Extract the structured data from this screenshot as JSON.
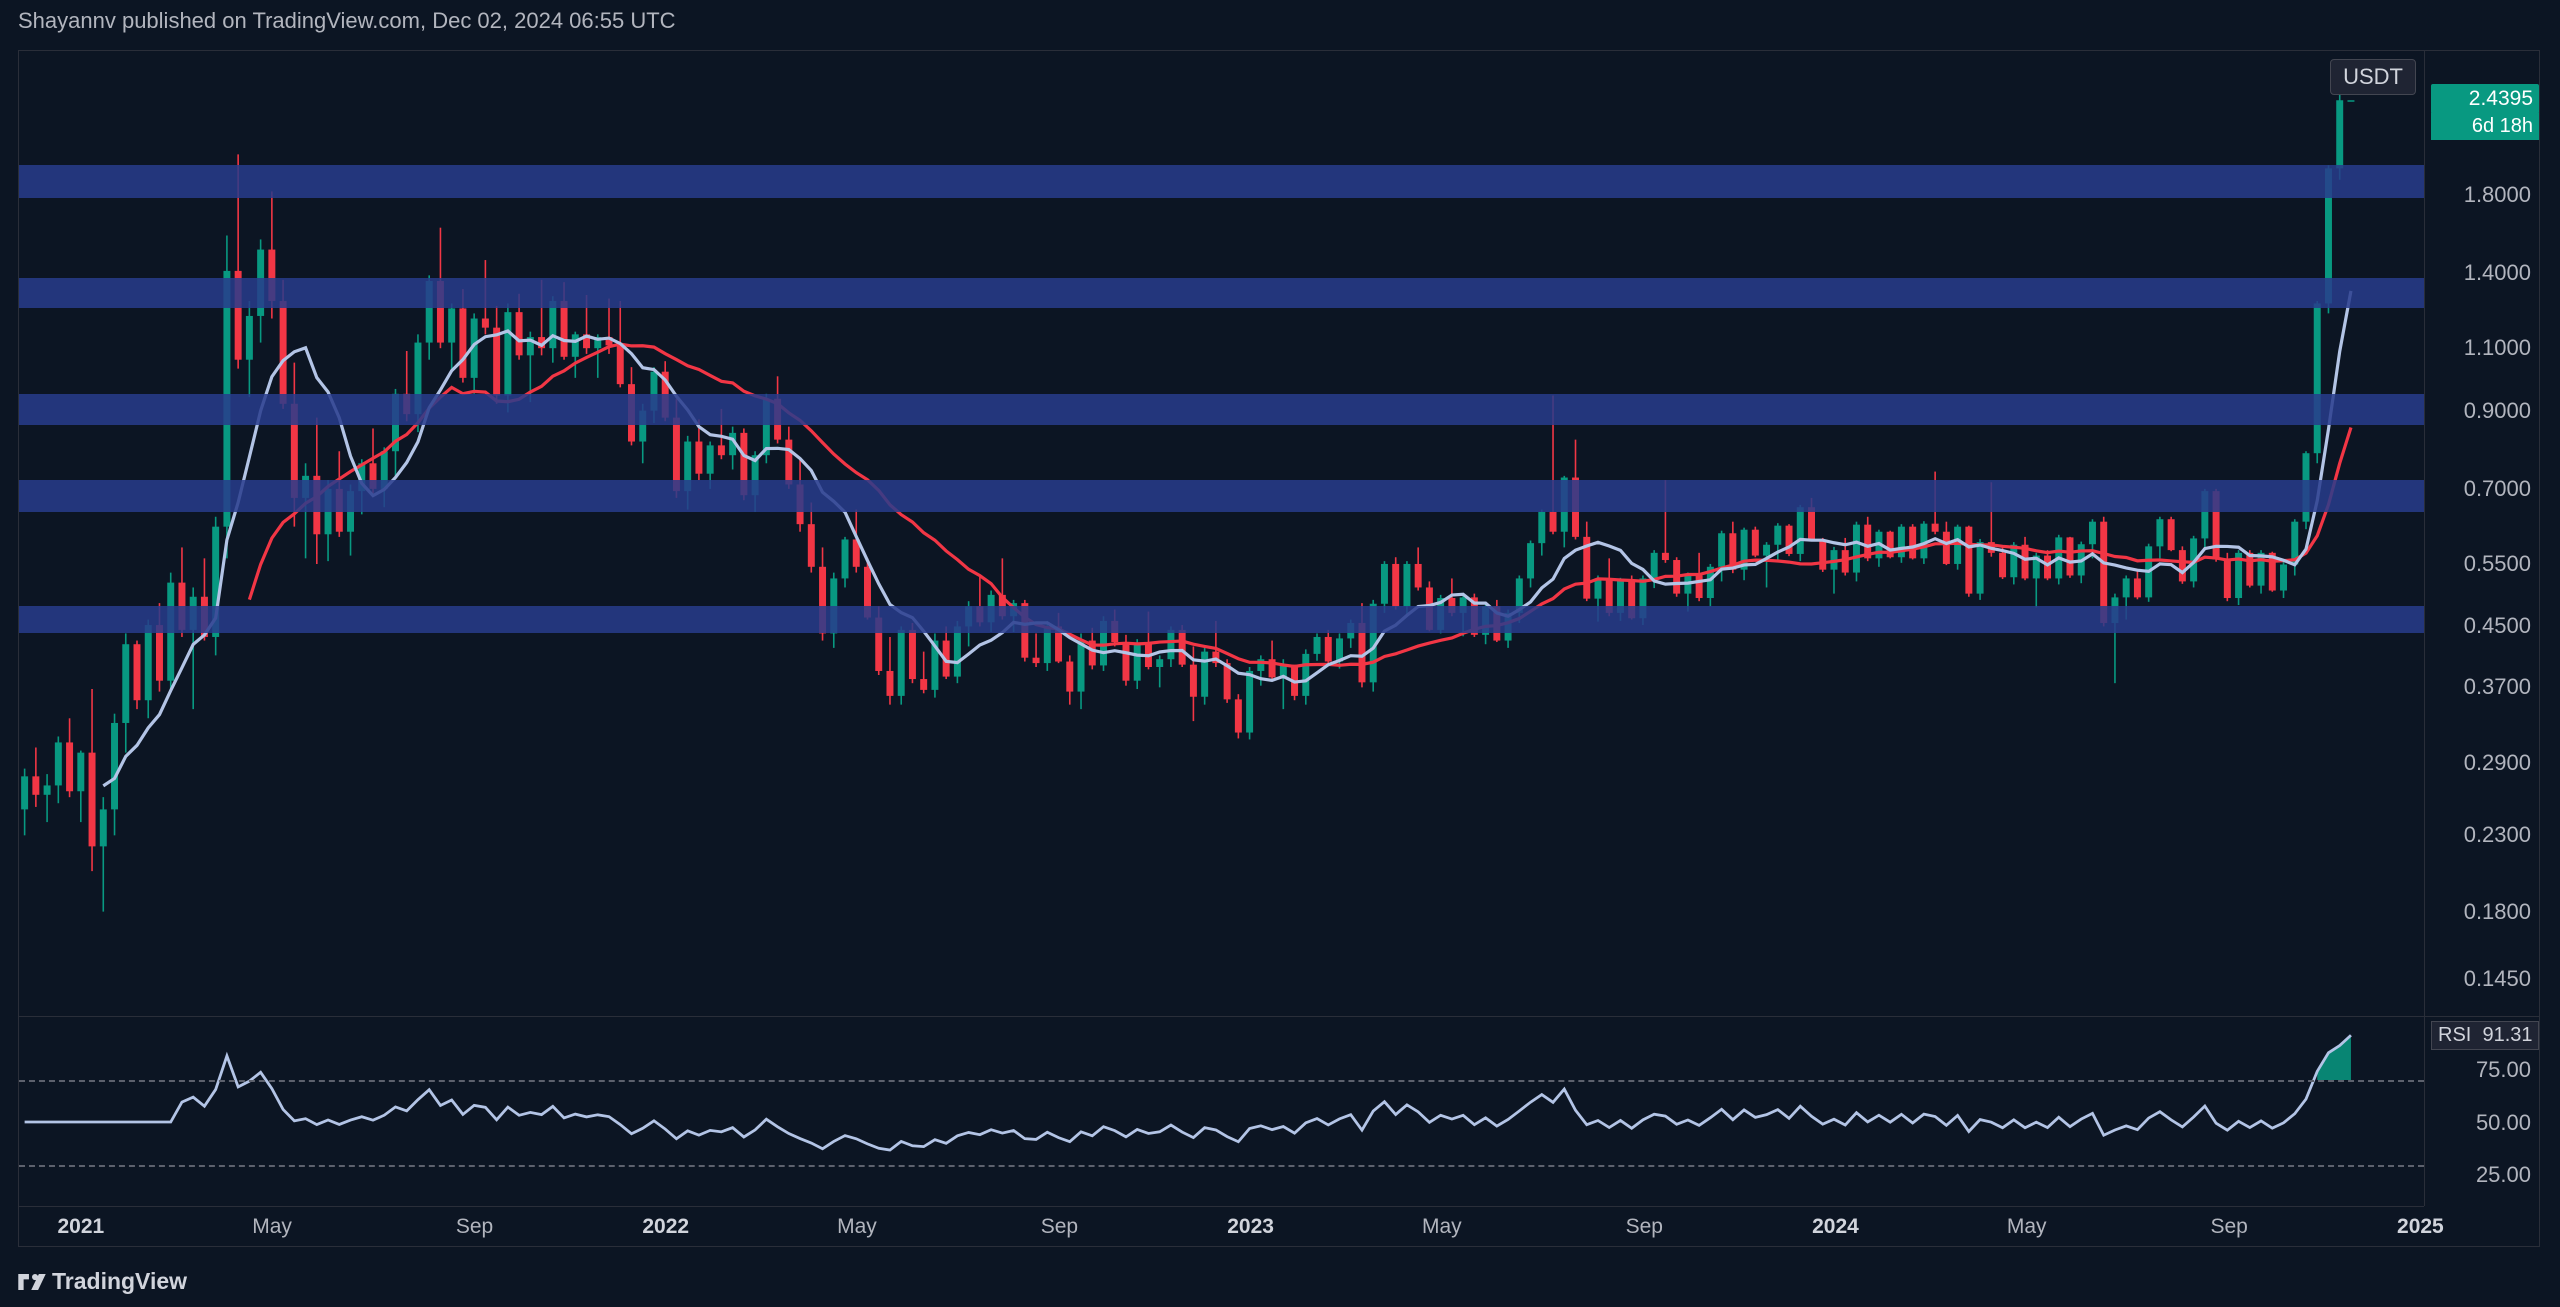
{
  "header": {
    "text": "Shayannv published on TradingView.com, Dec 02, 2024 06:55 UTC"
  },
  "footer": {
    "brand": "TradingView"
  },
  "quote_currency": "USDT",
  "current_price_label": "2.4395",
  "countdown_label": "6d 18h",
  "rsi_label": "RSI",
  "rsi_value_label": "91.31",
  "colors": {
    "background": "#0c1523",
    "grid": "#2a2e39",
    "text": "#b2b5be",
    "bull": "#089981",
    "bear": "#f23645",
    "ma_fast": "#b3c4e6",
    "ma_slow": "#f23645",
    "zone": "rgba(40,60,140,0.85)",
    "rsi_line": "#b3c4e6"
  },
  "price_chart": {
    "type": "candlestick-log",
    "y_ticks": [
      {
        "v": 0.145,
        "label": "0.1450"
      },
      {
        "v": 0.18,
        "label": "0.1800"
      },
      {
        "v": 0.23,
        "label": "0.2300"
      },
      {
        "v": 0.29,
        "label": "0.2900"
      },
      {
        "v": 0.37,
        "label": "0.3700"
      },
      {
        "v": 0.45,
        "label": "0.4500"
      },
      {
        "v": 0.55,
        "label": "0.5500"
      },
      {
        "v": 0.7,
        "label": "0.7000"
      },
      {
        "v": 0.9,
        "label": "0.9000"
      },
      {
        "v": 1.1,
        "label": "1.1000"
      },
      {
        "v": 1.4,
        "label": "1.4000"
      },
      {
        "v": 1.8,
        "label": "1.8000"
      }
    ],
    "y_min_log": -2.05,
    "y_max_log": 1.05,
    "zones": [
      {
        "lo": 0.44,
        "hi": 0.48
      },
      {
        "lo": 0.65,
        "hi": 0.72
      },
      {
        "lo": 0.86,
        "hi": 0.95
      },
      {
        "lo": 1.25,
        "hi": 1.38
      },
      {
        "lo": 1.78,
        "hi": 1.98
      }
    ],
    "x_labels": [
      {
        "i": 5,
        "label": "2021",
        "bold": true
      },
      {
        "i": 22,
        "label": "May"
      },
      {
        "i": 40,
        "label": "Sep"
      },
      {
        "i": 57,
        "label": "2022",
        "bold": true
      },
      {
        "i": 74,
        "label": "May"
      },
      {
        "i": 92,
        "label": "Sep"
      },
      {
        "i": 109,
        "label": "2023",
        "bold": true
      },
      {
        "i": 126,
        "label": "May"
      },
      {
        "i": 144,
        "label": "Sep"
      },
      {
        "i": 161,
        "label": "2024",
        "bold": true
      },
      {
        "i": 178,
        "label": "May"
      },
      {
        "i": 196,
        "label": "Sep"
      },
      {
        "i": 213,
        "label": "2025",
        "bold": true
      }
    ],
    "n_bars": 214,
    "candles": [
      [
        0.25,
        0.285,
        0.23,
        0.278
      ],
      [
        0.278,
        0.305,
        0.252,
        0.262
      ],
      [
        0.262,
        0.28,
        0.24,
        0.27
      ],
      [
        0.27,
        0.316,
        0.255,
        0.31
      ],
      [
        0.31,
        0.335,
        0.26,
        0.265
      ],
      [
        0.265,
        0.302,
        0.24,
        0.3
      ],
      [
        0.3,
        0.368,
        0.205,
        0.222
      ],
      [
        0.222,
        0.26,
        0.18,
        0.25
      ],
      [
        0.25,
        0.34,
        0.23,
        0.33
      ],
      [
        0.33,
        0.44,
        0.3,
        0.425
      ],
      [
        0.425,
        0.43,
        0.345,
        0.355
      ],
      [
        0.355,
        0.46,
        0.335,
        0.452
      ],
      [
        0.452,
        0.485,
        0.365,
        0.378
      ],
      [
        0.378,
        0.535,
        0.365,
        0.518
      ],
      [
        0.518,
        0.58,
        0.435,
        0.445
      ],
      [
        0.445,
        0.51,
        0.345,
        0.495
      ],
      [
        0.495,
        0.56,
        0.43,
        0.435
      ],
      [
        0.435,
        0.64,
        0.41,
        0.62
      ],
      [
        0.62,
        1.58,
        0.56,
        1.41
      ],
      [
        1.41,
        2.05,
        1.03,
        1.06
      ],
      [
        1.06,
        1.28,
        0.94,
        1.22
      ],
      [
        1.22,
        1.56,
        1.12,
        1.51
      ],
      [
        1.51,
        1.82,
        1.21,
        1.28
      ],
      [
        1.28,
        1.37,
        0.905,
        0.92
      ],
      [
        0.92,
        1.05,
        0.62,
        0.68
      ],
      [
        0.68,
        0.76,
        0.56,
        0.73
      ],
      [
        0.73,
        0.88,
        0.55,
        0.605
      ],
      [
        0.605,
        0.72,
        0.555,
        0.7
      ],
      [
        0.7,
        0.79,
        0.6,
        0.61
      ],
      [
        0.61,
        0.71,
        0.565,
        0.695
      ],
      [
        0.695,
        0.77,
        0.645,
        0.76
      ],
      [
        0.76,
        0.85,
        0.69,
        0.7
      ],
      [
        0.7,
        0.8,
        0.66,
        0.79
      ],
      [
        0.79,
        0.965,
        0.73,
        0.95
      ],
      [
        0.95,
        1.09,
        0.87,
        0.89
      ],
      [
        0.89,
        1.15,
        0.84,
        1.12
      ],
      [
        1.12,
        1.39,
        1.06,
        1.365
      ],
      [
        1.365,
        1.62,
        1.1,
        1.12
      ],
      [
        1.12,
        1.27,
        1.025,
        1.25
      ],
      [
        1.25,
        1.33,
        0.985,
        1.0
      ],
      [
        1.0,
        1.23,
        0.95,
        1.21
      ],
      [
        1.21,
        1.46,
        1.15,
        1.175
      ],
      [
        1.175,
        1.26,
        0.92,
        0.945
      ],
      [
        0.945,
        1.27,
        0.895,
        1.235
      ],
      [
        1.235,
        1.31,
        1.06,
        1.075
      ],
      [
        1.075,
        1.16,
        0.925,
        1.14
      ],
      [
        1.14,
        1.37,
        1.075,
        1.1
      ],
      [
        1.1,
        1.3,
        1.05,
        1.28
      ],
      [
        1.28,
        1.36,
        1.06,
        1.07
      ],
      [
        1.07,
        1.16,
        1.0,
        1.15
      ],
      [
        1.15,
        1.305,
        1.08,
        1.1
      ],
      [
        1.1,
        1.15,
        1.0,
        1.14
      ],
      [
        1.14,
        1.29,
        1.08,
        1.11
      ],
      [
        1.11,
        1.28,
        0.97,
        0.98
      ],
      [
        0.98,
        1.035,
        0.805,
        0.815
      ],
      [
        0.815,
        0.92,
        0.76,
        0.9
      ],
      [
        0.9,
        1.035,
        0.865,
        1.02
      ],
      [
        1.02,
        1.055,
        0.87,
        0.88
      ],
      [
        0.88,
        0.935,
        0.68,
        0.695
      ],
      [
        0.695,
        0.83,
        0.655,
        0.815
      ],
      [
        0.815,
        0.875,
        0.72,
        0.735
      ],
      [
        0.735,
        0.815,
        0.7,
        0.805
      ],
      [
        0.805,
        0.905,
        0.77,
        0.78
      ],
      [
        0.78,
        0.855,
        0.745,
        0.838
      ],
      [
        0.838,
        0.85,
        0.675,
        0.686
      ],
      [
        0.686,
        0.79,
        0.65,
        0.78
      ],
      [
        0.78,
        0.95,
        0.76,
        0.935
      ],
      [
        0.935,
        1.005,
        0.81,
        0.82
      ],
      [
        0.82,
        0.855,
        0.7,
        0.71
      ],
      [
        0.71,
        0.77,
        0.61,
        0.625
      ],
      [
        0.625,
        0.67,
        0.535,
        0.545
      ],
      [
        0.545,
        0.58,
        0.43,
        0.44
      ],
      [
        0.44,
        0.535,
        0.42,
        0.525
      ],
      [
        0.525,
        0.6,
        0.51,
        0.595
      ],
      [
        0.595,
        0.655,
        0.535,
        0.545
      ],
      [
        0.545,
        0.56,
        0.46,
        0.463
      ],
      [
        0.463,
        0.48,
        0.385,
        0.39
      ],
      [
        0.39,
        0.435,
        0.35,
        0.36
      ],
      [
        0.36,
        0.45,
        0.35,
        0.445
      ],
      [
        0.445,
        0.455,
        0.375,
        0.38
      ],
      [
        0.38,
        0.415,
        0.363,
        0.367
      ],
      [
        0.367,
        0.44,
        0.358,
        0.43
      ],
      [
        0.43,
        0.45,
        0.38,
        0.383
      ],
      [
        0.383,
        0.458,
        0.375,
        0.45
      ],
      [
        0.45,
        0.488,
        0.422,
        0.48
      ],
      [
        0.48,
        0.53,
        0.45,
        0.456
      ],
      [
        0.456,
        0.505,
        0.442,
        0.498
      ],
      [
        0.498,
        0.56,
        0.46,
        0.465
      ],
      [
        0.465,
        0.49,
        0.442,
        0.485
      ],
      [
        0.485,
        0.49,
        0.402,
        0.407
      ],
      [
        0.407,
        0.44,
        0.395,
        0.4
      ],
      [
        0.4,
        0.458,
        0.39,
        0.45
      ],
      [
        0.45,
        0.47,
        0.4,
        0.402
      ],
      [
        0.402,
        0.41,
        0.35,
        0.365
      ],
      [
        0.365,
        0.44,
        0.345,
        0.43
      ],
      [
        0.43,
        0.448,
        0.392,
        0.397
      ],
      [
        0.397,
        0.465,
        0.39,
        0.458
      ],
      [
        0.458,
        0.475,
        0.422,
        0.428
      ],
      [
        0.428,
        0.438,
        0.372,
        0.378
      ],
      [
        0.378,
        0.432,
        0.368,
        0.425
      ],
      [
        0.425,
        0.472,
        0.392,
        0.395
      ],
      [
        0.395,
        0.41,
        0.37,
        0.405
      ],
      [
        0.405,
        0.45,
        0.395,
        0.445
      ],
      [
        0.445,
        0.452,
        0.395,
        0.398
      ],
      [
        0.398,
        0.422,
        0.332,
        0.359
      ],
      [
        0.359,
        0.42,
        0.35,
        0.415
      ],
      [
        0.415,
        0.458,
        0.395,
        0.4
      ],
      [
        0.4,
        0.405,
        0.352,
        0.356
      ],
      [
        0.356,
        0.362,
        0.314,
        0.32
      ],
      [
        0.32,
        0.395,
        0.313,
        0.39
      ],
      [
        0.39,
        0.41,
        0.372,
        0.405
      ],
      [
        0.405,
        0.43,
        0.377,
        0.382
      ],
      [
        0.382,
        0.405,
        0.345,
        0.398
      ],
      [
        0.398,
        0.395,
        0.355,
        0.36
      ],
      [
        0.36,
        0.418,
        0.35,
        0.412
      ],
      [
        0.412,
        0.44,
        0.403,
        0.435
      ],
      [
        0.435,
        0.445,
        0.398,
        0.402
      ],
      [
        0.402,
        0.44,
        0.393,
        0.433
      ],
      [
        0.433,
        0.46,
        0.42,
        0.455
      ],
      [
        0.455,
        0.485,
        0.37,
        0.376
      ],
      [
        0.376,
        0.49,
        0.365,
        0.484
      ],
      [
        0.484,
        0.555,
        0.47,
        0.55
      ],
      [
        0.55,
        0.562,
        0.475,
        0.48
      ],
      [
        0.48,
        0.555,
        0.465,
        0.55
      ],
      [
        0.55,
        0.58,
        0.505,
        0.51
      ],
      [
        0.51,
        0.52,
        0.443,
        0.445
      ],
      [
        0.445,
        0.498,
        0.44,
        0.493
      ],
      [
        0.493,
        0.525,
        0.465,
        0.47
      ],
      [
        0.47,
        0.5,
        0.436,
        0.494
      ],
      [
        0.494,
        0.5,
        0.435,
        0.438
      ],
      [
        0.438,
        0.485,
        0.425,
        0.48
      ],
      [
        0.48,
        0.49,
        0.428,
        0.43
      ],
      [
        0.43,
        0.475,
        0.42,
        0.47
      ],
      [
        0.47,
        0.53,
        0.455,
        0.525
      ],
      [
        0.525,
        0.593,
        0.51,
        0.588
      ],
      [
        0.588,
        0.655,
        0.565,
        0.65
      ],
      [
        0.65,
        0.945,
        0.605,
        0.61
      ],
      [
        0.61,
        0.73,
        0.58,
        0.726
      ],
      [
        0.726,
        0.82,
        0.595,
        0.6
      ],
      [
        0.6,
        0.63,
        0.488,
        0.492
      ],
      [
        0.492,
        0.53,
        0.457,
        0.525
      ],
      [
        0.525,
        0.56,
        0.465,
        0.47
      ],
      [
        0.47,
        0.526,
        0.458,
        0.523
      ],
      [
        0.523,
        0.53,
        0.46,
        0.462
      ],
      [
        0.462,
        0.53,
        0.452,
        0.525
      ],
      [
        0.525,
        0.575,
        0.509,
        0.57
      ],
      [
        0.57,
        0.72,
        0.552,
        0.557
      ],
      [
        0.557,
        0.562,
        0.495,
        0.5
      ],
      [
        0.5,
        0.535,
        0.472,
        0.53
      ],
      [
        0.53,
        0.57,
        0.488,
        0.493
      ],
      [
        0.493,
        0.55,
        0.48,
        0.545
      ],
      [
        0.545,
        0.612,
        0.52,
        0.607
      ],
      [
        0.607,
        0.63,
        0.534,
        0.54
      ],
      [
        0.54,
        0.618,
        0.522,
        0.614
      ],
      [
        0.614,
        0.62,
        0.562,
        0.565
      ],
      [
        0.565,
        0.59,
        0.51,
        0.585
      ],
      [
        0.585,
        0.627,
        0.555,
        0.622
      ],
      [
        0.622,
        0.625,
        0.564,
        0.568
      ],
      [
        0.568,
        0.665,
        0.555,
        0.66
      ],
      [
        0.66,
        0.68,
        0.592,
        0.595
      ],
      [
        0.595,
        0.598,
        0.536,
        0.54
      ],
      [
        0.54,
        0.581,
        0.5,
        0.575
      ],
      [
        0.575,
        0.598,
        0.53,
        0.535
      ],
      [
        0.535,
        0.63,
        0.52,
        0.624
      ],
      [
        0.624,
        0.64,
        0.555,
        0.56
      ],
      [
        0.56,
        0.614,
        0.545,
        0.61
      ],
      [
        0.61,
        0.612,
        0.56,
        0.562
      ],
      [
        0.562,
        0.625,
        0.552,
        0.62
      ],
      [
        0.62,
        0.625,
        0.558,
        0.56
      ],
      [
        0.56,
        0.631,
        0.55,
        0.626
      ],
      [
        0.626,
        0.74,
        0.605,
        0.61
      ],
      [
        0.61,
        0.63,
        0.548,
        0.55
      ],
      [
        0.55,
        0.624,
        0.54,
        0.62
      ],
      [
        0.62,
        0.622,
        0.495,
        0.5
      ],
      [
        0.5,
        0.596,
        0.49,
        0.59
      ],
      [
        0.59,
        0.715,
        0.563,
        0.57
      ],
      [
        0.57,
        0.58,
        0.524,
        0.527
      ],
      [
        0.527,
        0.59,
        0.515,
        0.585
      ],
      [
        0.585,
        0.6,
        0.522,
        0.525
      ],
      [
        0.525,
        0.57,
        0.478,
        0.565
      ],
      [
        0.565,
        0.575,
        0.522,
        0.525
      ],
      [
        0.525,
        0.604,
        0.515,
        0.599
      ],
      [
        0.599,
        0.6,
        0.526,
        0.53
      ],
      [
        0.53,
        0.591,
        0.517,
        0.586
      ],
      [
        0.586,
        0.635,
        0.56,
        0.63
      ],
      [
        0.63,
        0.64,
        0.45,
        0.455
      ],
      [
        0.455,
        0.5,
        0.375,
        0.494
      ],
      [
        0.494,
        0.53,
        0.46,
        0.525
      ],
      [
        0.525,
        0.54,
        0.491,
        0.494
      ],
      [
        0.494,
        0.587,
        0.487,
        0.582
      ],
      [
        0.582,
        0.64,
        0.56,
        0.635
      ],
      [
        0.635,
        0.64,
        0.573,
        0.575
      ],
      [
        0.575,
        0.582,
        0.516,
        0.52
      ],
      [
        0.52,
        0.602,
        0.51,
        0.597
      ],
      [
        0.597,
        0.7,
        0.58,
        0.695
      ],
      [
        0.695,
        0.7,
        0.554,
        0.558
      ],
      [
        0.558,
        0.57,
        0.488,
        0.493
      ],
      [
        0.493,
        0.575,
        0.482,
        0.57
      ],
      [
        0.57,
        0.575,
        0.51,
        0.513
      ],
      [
        0.513,
        0.575,
        0.5,
        0.57
      ],
      [
        0.57,
        0.572,
        0.503,
        0.505
      ],
      [
        0.505,
        0.554,
        0.493,
        0.549
      ],
      [
        0.549,
        0.635,
        0.53,
        0.63
      ],
      [
        0.63,
        0.79,
        0.615,
        0.785
      ],
      [
        0.785,
        1.28,
        0.76,
        1.27
      ],
      [
        1.27,
        1.98,
        1.23,
        1.96
      ],
      [
        1.96,
        2.62,
        1.89,
        2.4395
      ],
      [
        2.4395,
        2.4395,
        2.4395,
        2.4395
      ],
      [
        2.4395,
        2.4395,
        2.4395,
        2.4395
      ],
      [
        2.4395,
        2.4395,
        2.4395,
        2.4395
      ],
      [
        2.4395,
        2.4395,
        2.4395,
        2.4395
      ],
      [
        2.4395,
        2.4395,
        2.4395,
        2.4395
      ],
      [
        2.4395,
        2.4395,
        2.4395,
        2.4395
      ]
    ],
    "last_candle_index": 207
  },
  "rsi": {
    "y_ticks": [
      25,
      50,
      75
    ],
    "upper_band": 70,
    "lower_band": 30,
    "value": 91.31
  }
}
